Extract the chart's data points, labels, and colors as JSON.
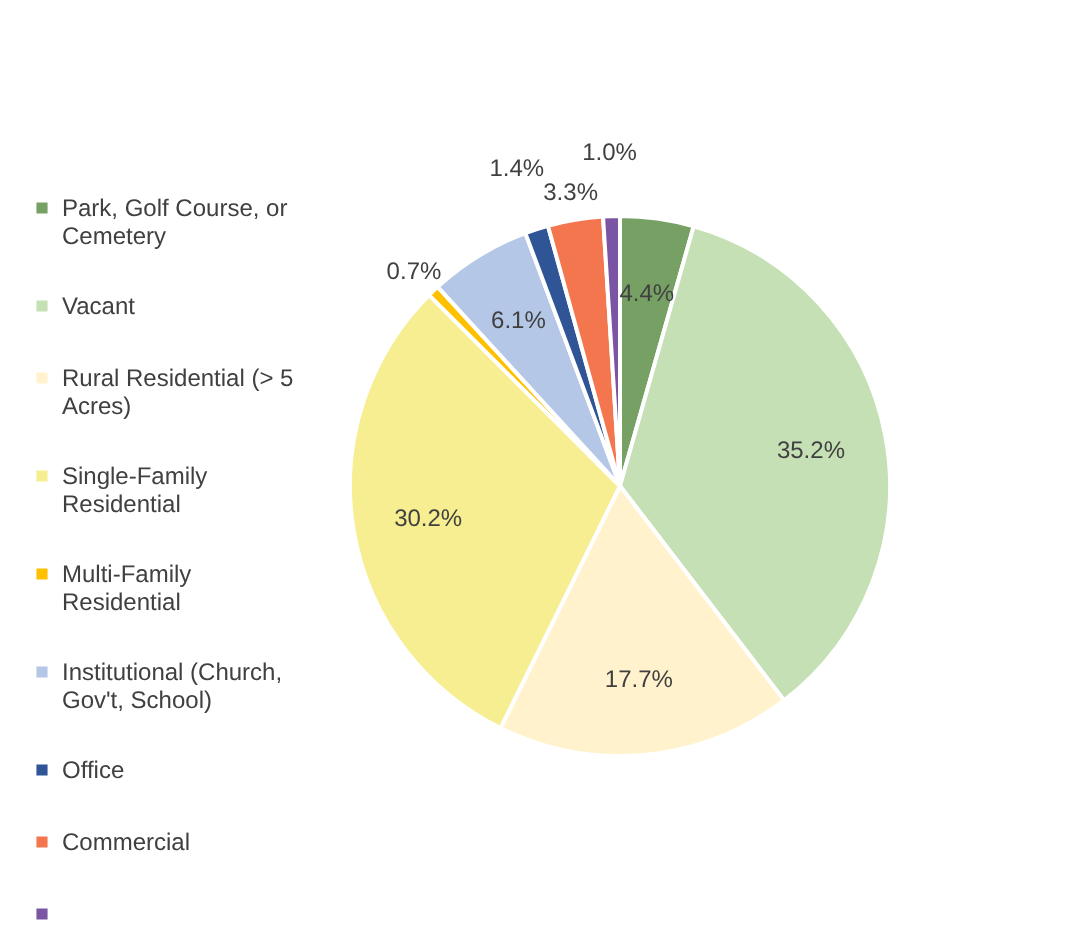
{
  "chart_data": {
    "type": "pie",
    "categories": [
      "Park, Golf Course, or Cemetery",
      "Vacant",
      "Rural Residential (> 5 Acres)",
      "Single-Family Residential",
      "Multi-Family Residential",
      "Institutional (Church, Gov't, School)",
      "Office",
      "Commercial",
      null
    ],
    "values": [
      4.4,
      35.2,
      17.7,
      30.2,
      0.7,
      6.1,
      1.4,
      3.3,
      1.0
    ],
    "colors": [
      "#77a064",
      "#c5e0b4",
      "#fff2cc",
      "#f6ee91",
      "#ffc000",
      "#b4c7e7",
      "#2f5597",
      "#f4764f",
      "#7b55a3"
    ],
    "value_labels": [
      "4.4%",
      "35.2%",
      "17.7%",
      "30.2%",
      "0.7%",
      "6.1%",
      "1.4%",
      "3.3%",
      "1.0%"
    ],
    "legend": "left"
  }
}
